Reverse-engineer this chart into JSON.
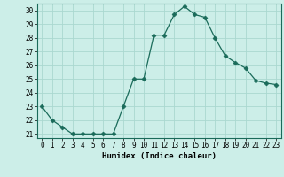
{
  "x": [
    0,
    1,
    2,
    3,
    4,
    5,
    6,
    7,
    8,
    9,
    10,
    11,
    12,
    13,
    14,
    15,
    16,
    17,
    18,
    19,
    20,
    21,
    22,
    23
  ],
  "y": [
    23,
    22,
    21.5,
    21,
    21,
    21,
    21,
    21,
    23,
    25,
    25,
    28.2,
    28.2,
    29.7,
    30.3,
    29.7,
    29.5,
    28,
    26.7,
    26.2,
    25.8,
    24.9,
    24.7,
    24.6
  ],
  "xlabel": "Humidex (Indice chaleur)",
  "xlim": [
    -0.5,
    23.5
  ],
  "ylim": [
    20.7,
    30.5
  ],
  "yticks": [
    21,
    22,
    23,
    24,
    25,
    26,
    27,
    28,
    29,
    30
  ],
  "xticks": [
    0,
    1,
    2,
    3,
    4,
    5,
    6,
    7,
    8,
    9,
    10,
    11,
    12,
    13,
    14,
    15,
    16,
    17,
    18,
    19,
    20,
    21,
    22,
    23
  ],
  "line_color": "#1a6b5a",
  "marker": "D",
  "marker_size": 2.5,
  "bg_color": "#cceee8",
  "grid_color": "#aad8d0",
  "tick_fontsize": 5.5,
  "xlabel_fontsize": 6.5
}
